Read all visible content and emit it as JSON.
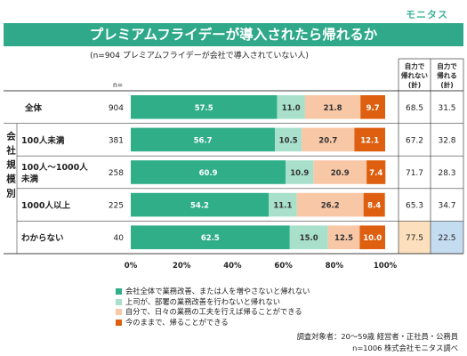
{
  "brand": "モニタス",
  "title": "プレミアムフライデーが導入されたら帰れるか",
  "subtitle": "(n=904 プレミアムフライデーが会社で導入されていない人)",
  "n_header": "n=",
  "group_label": "会社規模別",
  "col_header_1": [
    "自力で",
    "帰れない",
    "(計)"
  ],
  "col_header_2": [
    "自力で",
    "帰れる",
    "(計)"
  ],
  "chart_data": {
    "type": "bar",
    "orientation": "horizontal",
    "stacked": true,
    "percent_axis": true,
    "xlim": [
      0,
      100
    ],
    "x_ticks": [
      "0%",
      "20%",
      "40%",
      "60%",
      "80%",
      "100%"
    ],
    "categories": [
      "全体",
      "100人未満",
      "100人～1000人未満",
      "1000人以上",
      "わからない"
    ],
    "n": [
      904,
      381,
      258,
      225,
      40
    ],
    "series": [
      {
        "name": "会社全体で業務改善、または人を増やさないと帰れない",
        "color": "#2fae88",
        "values": [
          57.5,
          56.7,
          60.9,
          54.2,
          62.5
        ]
      },
      {
        "name": "上司が、部署の業務改善を行わないと帰れない",
        "color": "#a8e0cc",
        "values": [
          11.0,
          10.5,
          10.9,
          11.1,
          15.0
        ]
      },
      {
        "name": "自分で、日々の業務の工夫を行えば帰ることができる",
        "color": "#f8c7a6",
        "values": [
          21.8,
          20.7,
          20.9,
          26.2,
          12.5
        ]
      },
      {
        "name": "今のままで、帰ることができる",
        "color": "#de5f0f",
        "values": [
          9.7,
          12.1,
          7.4,
          8.4,
          10.0
        ]
      }
    ],
    "totals_cannot": [
      68.5,
      67.2,
      71.7,
      65.3,
      77.5
    ],
    "totals_can": [
      31.5,
      32.8,
      28.3,
      34.7,
      22.5
    ],
    "highlight_row": 4,
    "highlight_colors": {
      "cannot": "#fce0bd",
      "can": "#c4dcf0"
    }
  },
  "footnotes": [
    "調査対象者：20～59歳 経営者・正社員・公務員",
    "n=1006 株式会社モニタス調べ"
  ]
}
